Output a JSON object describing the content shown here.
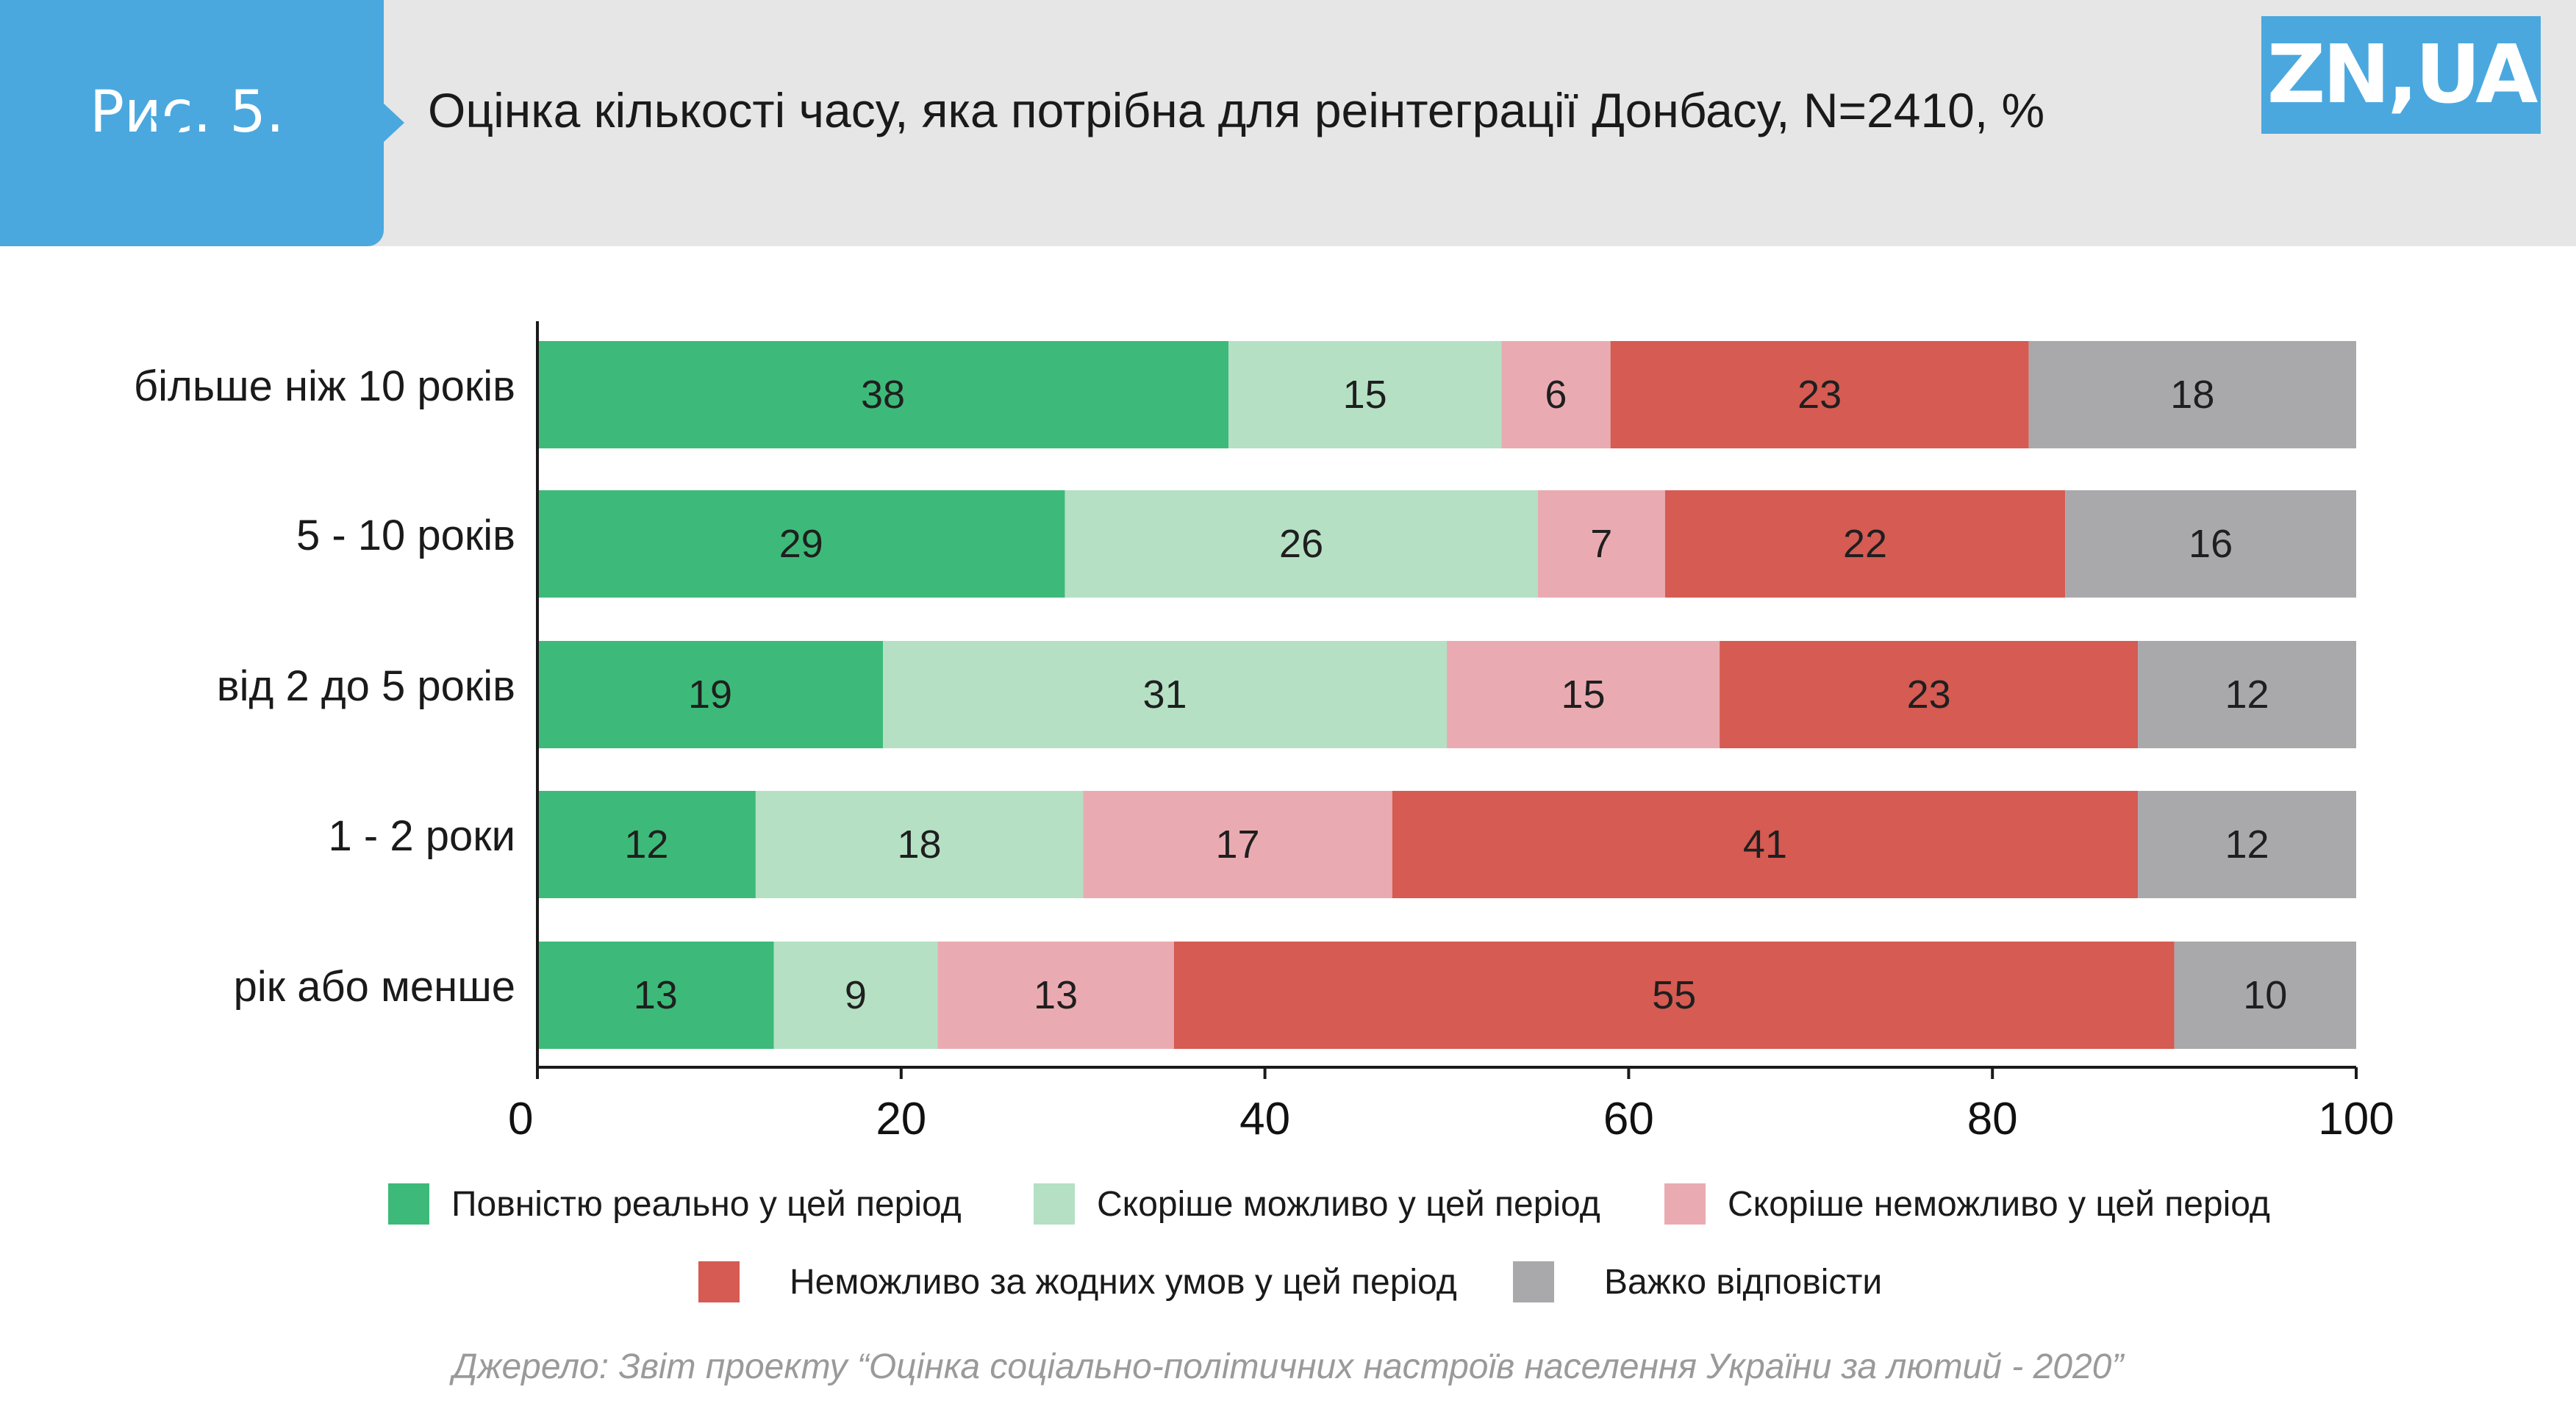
{
  "header": {
    "figure_label": "Рис. 5.",
    "title": "Оцінка кількості часу, яка потрібна для реінтеграції Донбасу, N=2410, %",
    "logo_text": "ZN,UA",
    "accent_color": "#4aa8df",
    "band_color": "#e6e6e6"
  },
  "chart_data": {
    "type": "bar",
    "orientation": "horizontal",
    "stacked": true,
    "title": "Оцінка кількості часу, яка потрібна для реінтеграції Донбасу, N=2410, %",
    "categories": [
      "більше ніж 10 років",
      "5 - 10 років",
      "від 2 до 5 років",
      "1 - 2 роки",
      "рік або менше"
    ],
    "series": [
      {
        "name": "Повністю реально у цей період",
        "color": "#3dba79",
        "values": [
          38,
          29,
          19,
          12,
          13
        ]
      },
      {
        "name": "Скоріше можливо у цей період",
        "color": "#b5e0c4",
        "values": [
          15,
          26,
          31,
          18,
          9
        ]
      },
      {
        "name": "Скоріше неможливо у цей період",
        "color": "#e9abb1",
        "values": [
          6,
          7,
          15,
          17,
          13
        ]
      },
      {
        "name": "Неможливо за жодних умов у цей період",
        "color": "#d55b53",
        "values": [
          23,
          22,
          23,
          41,
          55
        ]
      },
      {
        "name": "Важко відповісти",
        "color": "#a9a9ac",
        "values": [
          18,
          16,
          12,
          12,
          10
        ]
      }
    ],
    "xlim": [
      0,
      100
    ],
    "xticks": [
      0,
      20,
      40,
      60,
      80,
      100
    ],
    "xlabel": "",
    "ylabel": "",
    "grid": false,
    "legend_position": "bottom"
  },
  "source": "Джерело: Звіт проекту “Оцінка соціально-політичних настроїв населення України за лютий - 2020”"
}
